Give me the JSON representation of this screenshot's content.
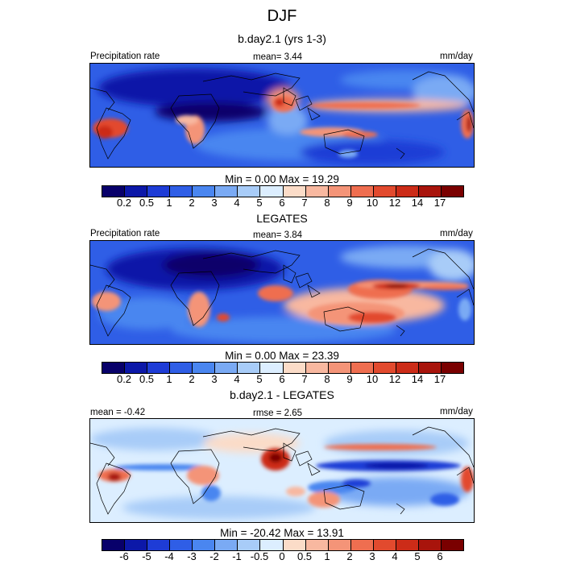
{
  "title": "DJF",
  "panels": [
    {
      "subtitle": "b.day2.1 (yrs 1-3)",
      "left_label": "Precipitation rate",
      "center_label": "mean=   3.44",
      "right_label": "mm/day",
      "minmax": "Min =   0.00 Max =  19.29"
    },
    {
      "subtitle": "LEGATES",
      "left_label": "Precipitation rate",
      "center_label": "mean=   3.84",
      "right_label": "mm/day",
      "minmax": "Min =   0.00 Max =  23.39"
    },
    {
      "subtitle": "b.day2.1 - LEGATES",
      "left_label": "mean =  -0.42",
      "center_label": "rmse =   2.65",
      "right_label": "mm/day",
      "minmax": "Min = -20.42 Max =  13.91"
    }
  ],
  "colorbar_precip": {
    "colors": [
      "#08006a",
      "#0c18a8",
      "#1e3cd6",
      "#2f5ee6",
      "#4a86f0",
      "#7aaaf4",
      "#a8ccf8",
      "#dceeff",
      "#fbdcc8",
      "#f8b8a0",
      "#f49478",
      "#ef6e50",
      "#e24a2e",
      "#cc2c18",
      "#a8140c",
      "#7a0000"
    ],
    "ticks": [
      "0.2",
      "0.5",
      "1",
      "2",
      "3",
      "4",
      "5",
      "6",
      "7",
      "8",
      "9",
      "10",
      "12",
      "14",
      "17"
    ]
  },
  "colorbar_diff": {
    "colors": [
      "#08006a",
      "#0c18a8",
      "#1e3cd6",
      "#2f5ee6",
      "#4a86f0",
      "#7aaaf4",
      "#a8ccf8",
      "#dceeff",
      "#fbdcc8",
      "#f8b8a0",
      "#f49478",
      "#ef6e50",
      "#e24a2e",
      "#cc2c18",
      "#a8140c",
      "#7a0000"
    ],
    "ticks": [
      "-6",
      "-5",
      "-4",
      "-3",
      "-2",
      "-1",
      "-0.5",
      "0",
      "0.5",
      "1",
      "2",
      "3",
      "4",
      "5",
      "6"
    ]
  },
  "chart_data": [
    {
      "type": "heatmap",
      "title": "b.day2.1 (yrs 1-3)",
      "variable": "Precipitation rate",
      "units": "mm/day",
      "mean": 3.44,
      "min": 0.0,
      "max": 19.29,
      "levels": [
        0.2,
        0.5,
        1,
        2,
        3,
        4,
        5,
        6,
        7,
        8,
        9,
        10,
        12,
        14,
        17
      ]
    },
    {
      "type": "heatmap",
      "title": "LEGATES",
      "variable": "Precipitation rate",
      "units": "mm/day",
      "mean": 3.84,
      "min": 0.0,
      "max": 23.39,
      "levels": [
        0.2,
        0.5,
        1,
        2,
        3,
        4,
        5,
        6,
        7,
        8,
        9,
        10,
        12,
        14,
        17
      ]
    },
    {
      "type": "heatmap",
      "title": "b.day2.1 - LEGATES",
      "units": "mm/day",
      "mean": -0.42,
      "rmse": 2.65,
      "min": -20.42,
      "max": 13.91,
      "levels": [
        -6,
        -5,
        -4,
        -3,
        -2,
        -1,
        -0.5,
        0,
        0.5,
        1,
        2,
        3,
        4,
        5,
        6
      ]
    }
  ]
}
